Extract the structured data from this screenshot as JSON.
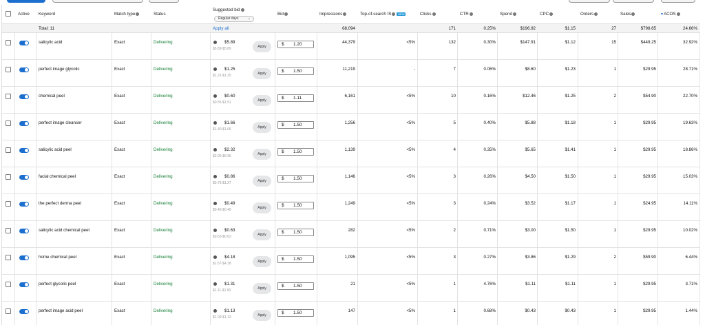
{
  "columns": {
    "active": "Active",
    "keyword": "Keyword",
    "match_type": "Match type",
    "status": "Status",
    "suggested_bid": "Suggested bid",
    "suggested_bid_filter": "Regular days",
    "bid": "Bid",
    "impressions": "Impressions",
    "top_of_search": "Top-of-search IS",
    "top_of_search_badge": "NEW",
    "clicks": "Clicks",
    "ctr": "CTR",
    "spend": "Spend",
    "cpc": "CPC",
    "orders": "Orders",
    "sales": "Sales",
    "acos": "ACOS",
    "acos_sort_indicator": "▼"
  },
  "totals": {
    "label": "Total: 11",
    "apply_all": "Apply all",
    "impressions": "68,094",
    "clicks": "171",
    "ctr": "0.25%",
    "spend": "$196.92",
    "cpc": "$1.15",
    "orders": "27",
    "sales": "$798.65",
    "acos": "24.66%"
  },
  "apply_label": "Apply",
  "currency_symbol": "$",
  "rows": [
    {
      "keyword": "salicylic acid",
      "match": "Exact",
      "status": "Delivering",
      "sugg": "$5.89",
      "range": "$5.89-$5.89",
      "bid": "1.20",
      "impressions": "44,379",
      "tos": "<5%",
      "clicks": "132",
      "ctr": "0.30%",
      "spend": "$147.91",
      "cpc": "$1.12",
      "orders": "15",
      "sales": "$449.25",
      "acos": "32.92%"
    },
    {
      "keyword": "perfect image glycolic",
      "match": "Exact",
      "status": "Delivering",
      "sugg": "$1.25",
      "range": "$1.21-$1.25",
      "bid": "1.50",
      "impressions": "11,219",
      "tos": "-",
      "clicks": "7",
      "ctr": "0.06%",
      "spend": "$8.60",
      "cpc": "$1.23",
      "orders": "1",
      "sales": "$29.95",
      "acos": "28.71%"
    },
    {
      "keyword": "chemical peel",
      "match": "Exact",
      "status": "Delivering",
      "sugg": "$0.60",
      "range": "$0.55-$1.91",
      "bid": "1.11",
      "impressions": "6,161",
      "tos": "<5%",
      "clicks": "10",
      "ctr": "0.16%",
      "spend": "$12.46",
      "cpc": "$1.25",
      "orders": "2",
      "sales": "$54.90",
      "acos": "22.70%"
    },
    {
      "keyword": "perfect image cleanser",
      "match": "Exact",
      "status": "Delivering",
      "sugg": "$1.66",
      "range": "$1.40-$1.66",
      "bid": "1.50",
      "impressions": "1,256",
      "tos": "<5%",
      "clicks": "5",
      "ctr": "0.40%",
      "spend": "$5.88",
      "cpc": "$1.18",
      "orders": "1",
      "sales": "$29.95",
      "acos": "19.63%"
    },
    {
      "keyword": "salicylic acid peel",
      "match": "Exact",
      "status": "Delivering",
      "sugg": "$2.32",
      "range": "$2.05-$6.96",
      "bid": "1.50",
      "impressions": "1,139",
      "tos": "<5%",
      "clicks": "4",
      "ctr": "0.35%",
      "spend": "$5.65",
      "cpc": "$1.41",
      "orders": "1",
      "sales": "$29.95",
      "acos": "18.86%"
    },
    {
      "keyword": "facial chemical peel",
      "match": "Exact",
      "status": "Delivering",
      "sugg": "$0.86",
      "range": "$0.76-$1.27",
      "bid": "1.50",
      "impressions": "1,146",
      "tos": "<5%",
      "clicks": "3",
      "ctr": "0.26%",
      "spend": "$4.50",
      "cpc": "$1.50",
      "orders": "1",
      "sales": "$29.95",
      "acos": "15.03%"
    },
    {
      "keyword": "the perfect derma peel",
      "match": "Exact",
      "status": "Delivering",
      "sugg": "$0.49",
      "range": "$0.49-$0.49",
      "bid": "1.50",
      "impressions": "1,249",
      "tos": "<5%",
      "clicks": "3",
      "ctr": "0.24%",
      "spend": "$3.52",
      "cpc": "$1.17",
      "orders": "1",
      "sales": "$24.95",
      "acos": "14.11%"
    },
    {
      "keyword": "salicylic acid chemical peel",
      "match": "Exact",
      "status": "Delivering",
      "sugg": "$0.63",
      "range": "$0.63-$0.63",
      "bid": "1.50",
      "impressions": "282",
      "tos": "<5%",
      "clicks": "2",
      "ctr": "0.71%",
      "spend": "$3.00",
      "cpc": "$1.50",
      "orders": "1",
      "sales": "$29.95",
      "acos": "10.02%"
    },
    {
      "keyword": "home chemical peel",
      "match": "Exact",
      "status": "Delivering",
      "sugg": "$4.18",
      "range": "$1.67-$4.18",
      "bid": "1.50",
      "impressions": "1,095",
      "tos": "<5%",
      "clicks": "3",
      "ctr": "0.27%",
      "spend": "$3.86",
      "cpc": "$1.29",
      "orders": "2",
      "sales": "$59.90",
      "acos": "6.44%"
    },
    {
      "keyword": "perfect glycolic peel",
      "match": "Exact",
      "status": "Delivering",
      "sugg": "$1.31",
      "range": "$1.11-$1.50",
      "bid": "1.50",
      "impressions": "21",
      "tos": "<5%",
      "clicks": "1",
      "ctr": "4.76%",
      "spend": "$1.11",
      "cpc": "$1.11",
      "orders": "1",
      "sales": "$29.95",
      "acos": "3.71%"
    },
    {
      "keyword": "perfect image acid peel",
      "match": "Exact",
      "status": "Delivering",
      "sugg": "$1.13",
      "range": "$1.09-$1.13",
      "bid": "1.50",
      "impressions": "147",
      "tos": "<5%",
      "clicks": "1",
      "ctr": "0.68%",
      "spend": "$0.43",
      "cpc": "$0.43",
      "orders": "1",
      "sales": "$29.95",
      "acos": "1.44%"
    }
  ]
}
